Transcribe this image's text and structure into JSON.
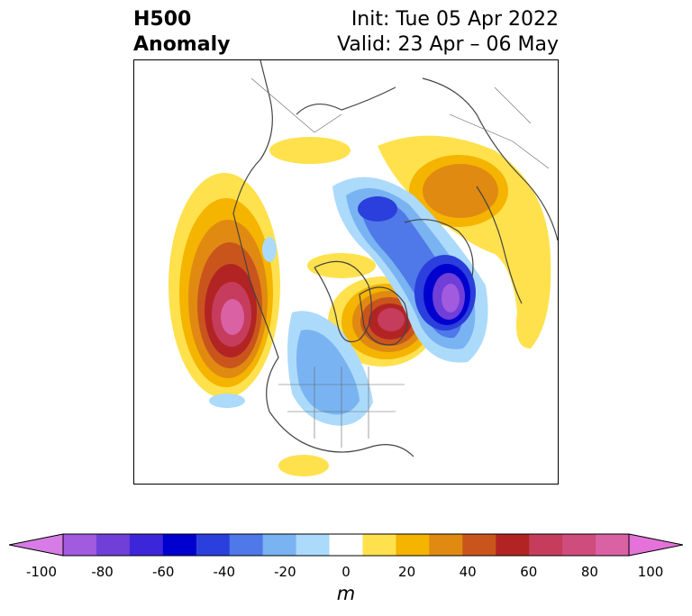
{
  "title": {
    "left_line1": "H500",
    "left_line2": "Anomaly",
    "right_line1": "Init: Tue 05 Apr 2022",
    "right_line2": "Valid: 23 Apr – 06 May"
  },
  "colorbar": {
    "unit": "m",
    "ticks": [
      "-100",
      "-80",
      "-60",
      "-40",
      "-20",
      "0",
      "20",
      "40",
      "60",
      "80",
      "100"
    ],
    "colors": [
      "#d77ce6",
      "#a25bdf",
      "#6f3fd8",
      "#3d26d9",
      "#0000cf",
      "#2a3fdb",
      "#4f78e8",
      "#79b3f2",
      "#acdafa",
      "#ffffff",
      "#ffe14d",
      "#f4b400",
      "#e08a12",
      "#c9551c",
      "#b22424",
      "#c63c5c",
      "#cf4d7c",
      "#d961a4",
      "#e472d8"
    ]
  }
}
